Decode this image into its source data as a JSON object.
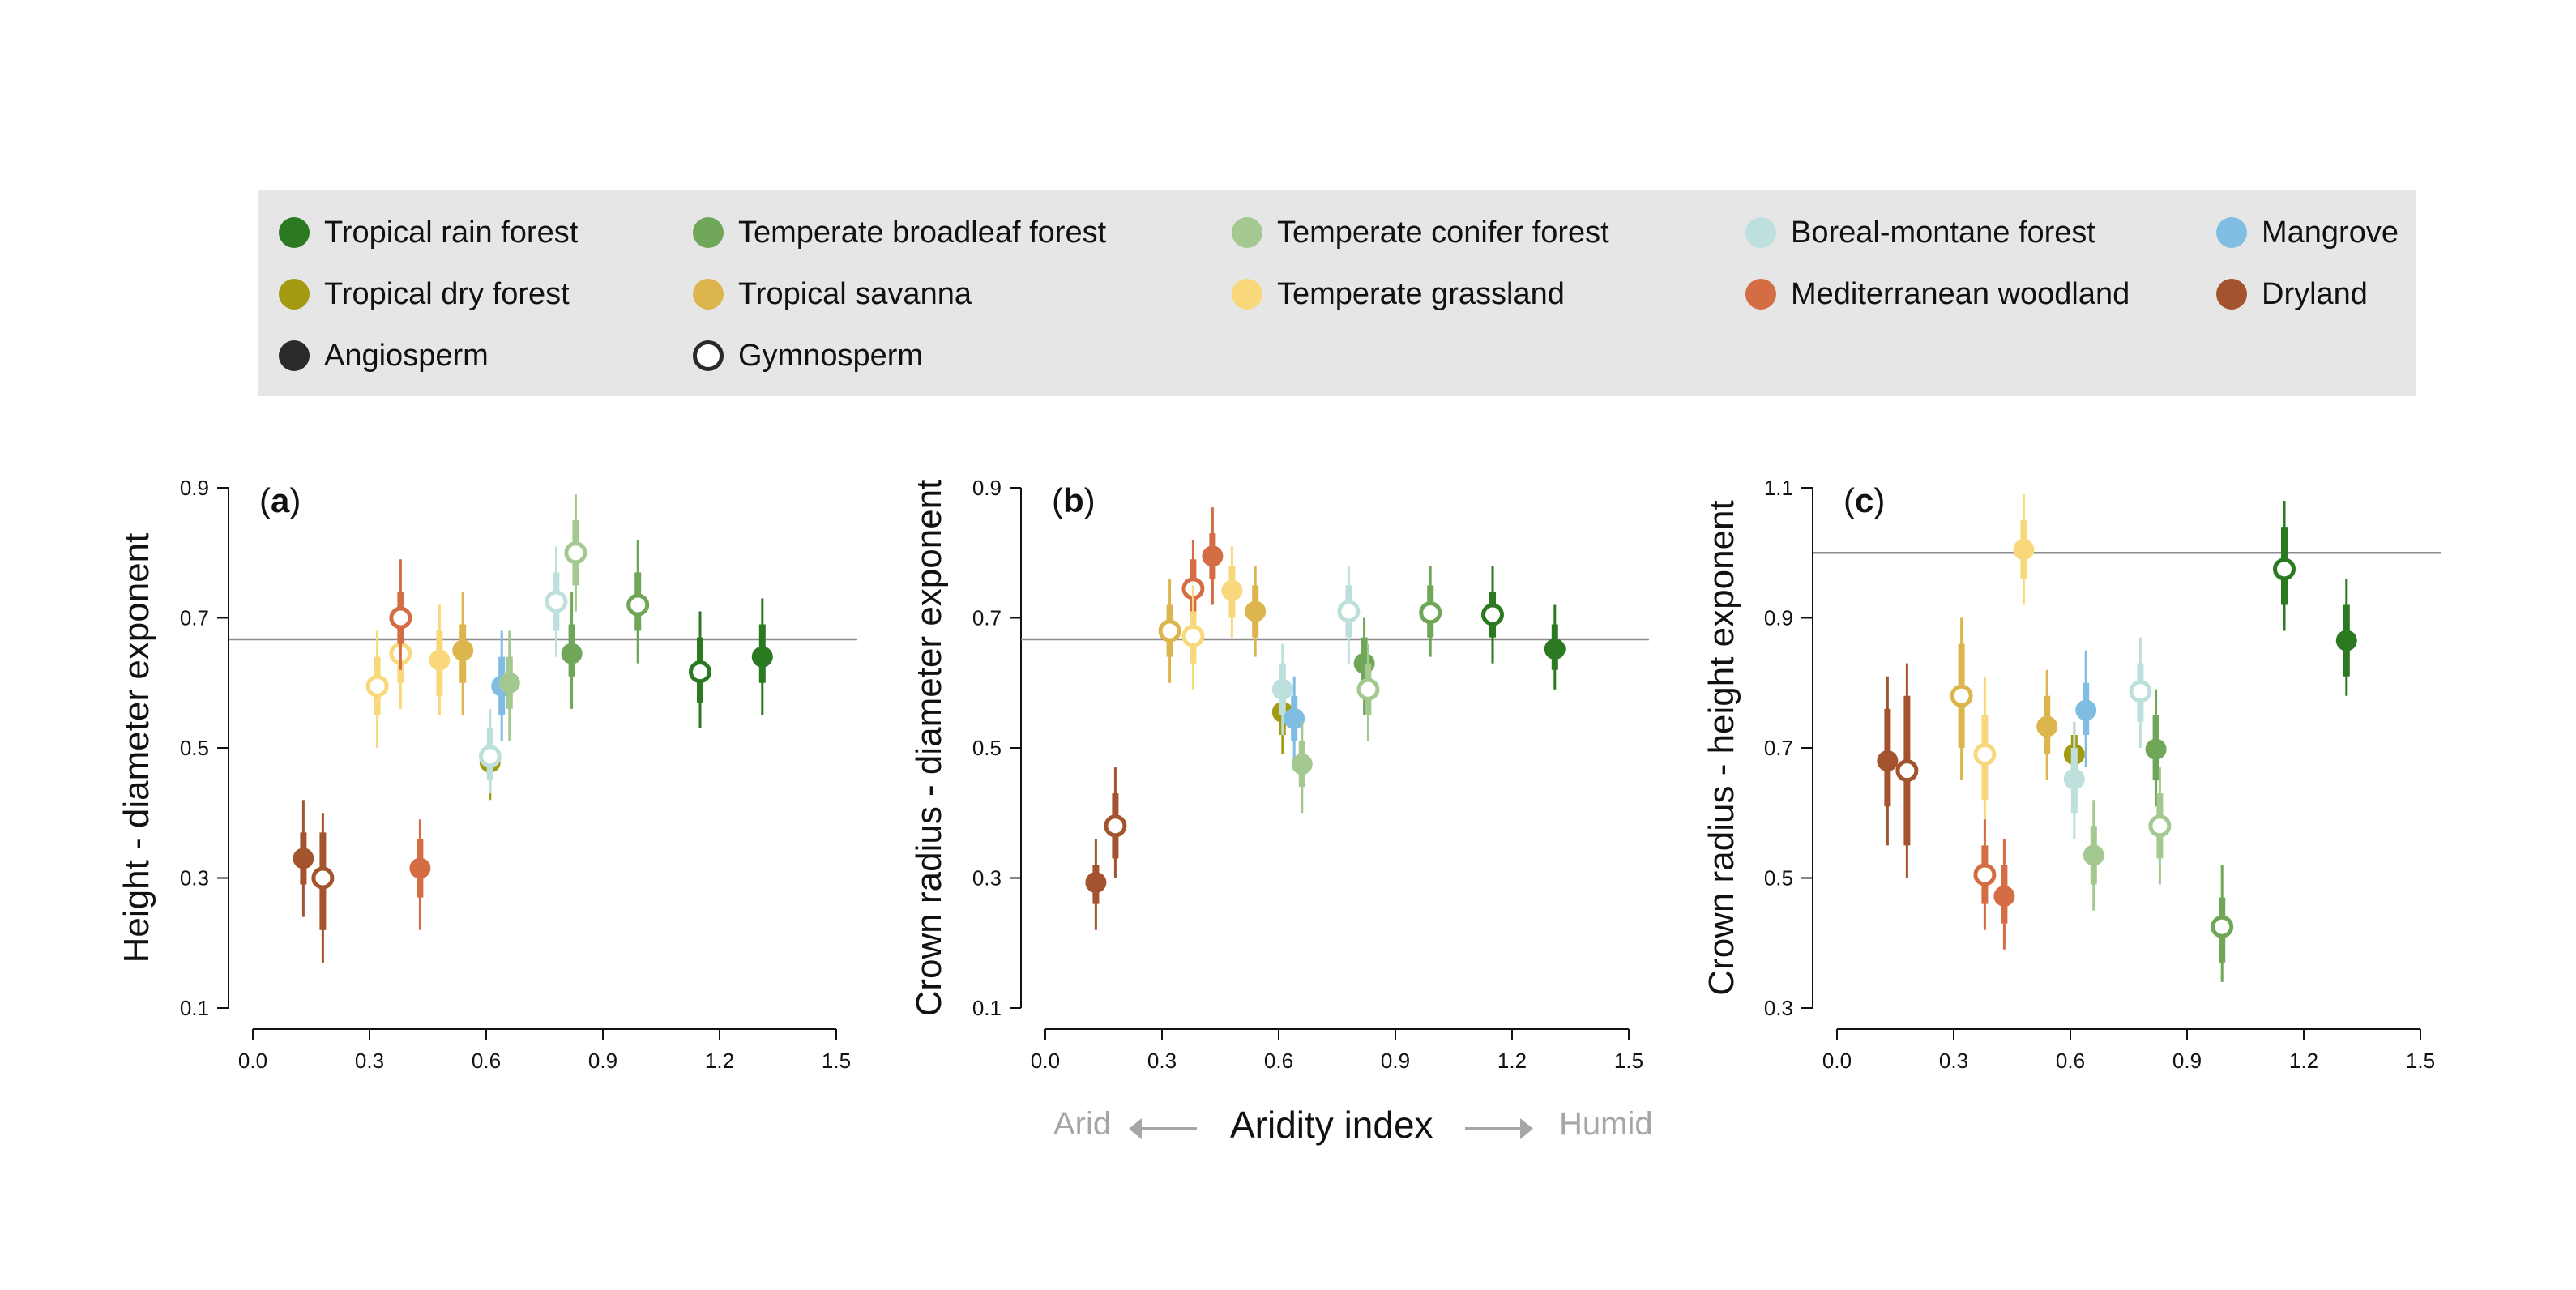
{
  "colors": {
    "tropical_rain_forest": "#2b7a22",
    "temperate_broadleaf_forest": "#6fa657",
    "temperate_conifer_forest": "#a3c890",
    "boreal_montane_forest": "#bde0dc",
    "mangrove": "#7fbde3",
    "tropical_dry_forest": "#a39a12",
    "tropical_savanna": "#dcb54c",
    "temperate_grassland": "#f8d87a",
    "mediterranean_woodland": "#d46d44",
    "dryland": "#a3532e",
    "angiosperm": "#2a2a2a",
    "gymnosperm": "#ffffff",
    "reference_line": "#8c8c8c"
  },
  "legend": [
    {
      "label": "Tropical rain forest",
      "key": "tropical_rain_forest",
      "style": "filled"
    },
    {
      "label": "Temperate broadleaf forest",
      "key": "temperate_broadleaf_forest",
      "style": "filled"
    },
    {
      "label": "Temperate conifer forest",
      "key": "temperate_conifer_forest",
      "style": "filled"
    },
    {
      "label": "Boreal-montane forest",
      "key": "boreal_montane_forest",
      "style": "filled"
    },
    {
      "label": "Mangrove",
      "key": "mangrove",
      "style": "filled"
    },
    {
      "label": "Tropical dry forest",
      "key": "tropical_dry_forest",
      "style": "filled"
    },
    {
      "label": "Tropical savanna",
      "key": "tropical_savanna",
      "style": "filled"
    },
    {
      "label": "Temperate grassland",
      "key": "temperate_grassland",
      "style": "filled"
    },
    {
      "label": "Mediterranean woodland",
      "key": "mediterranean_woodland",
      "style": "filled"
    },
    {
      "label": "Dryland",
      "key": "dryland",
      "style": "filled"
    },
    {
      "label": "Angiosperm",
      "key": "angiosperm",
      "style": "filled"
    },
    {
      "label": "Gymnosperm",
      "key": "angiosperm",
      "style": "open"
    }
  ],
  "x_axis": {
    "label": "Aridity index",
    "left_note": "Arid",
    "right_note": "Humid",
    "ticks": [
      "0.0",
      "0.3",
      "0.6",
      "0.9",
      "1.2",
      "1.5"
    ],
    "range": [
      0,
      1.5
    ]
  },
  "chart_data": [
    {
      "type": "scatter",
      "tag_letter": "a",
      "ylabel": "Height - diameter exponent",
      "ylim": [
        0.1,
        0.9
      ],
      "yticks": [
        "0.1",
        "0.3",
        "0.5",
        "0.7",
        "0.9"
      ],
      "reference_line": 0.667,
      "points": [
        {
          "x": 0.13,
          "y": 0.33,
          "lo50": 0.29,
          "hi50": 0.37,
          "lo95": 0.24,
          "hi95": 0.42,
          "biome": "dryland",
          "group": "angiosperm"
        },
        {
          "x": 0.18,
          "y": 0.3,
          "lo50": 0.22,
          "hi50": 0.37,
          "lo95": 0.17,
          "hi95": 0.4,
          "biome": "dryland",
          "group": "gymnosperm"
        },
        {
          "x": 0.32,
          "y": 0.595,
          "lo50": 0.55,
          "hi50": 0.64,
          "lo95": 0.5,
          "hi95": 0.68,
          "biome": "temperate_grassland",
          "group": "gymnosperm"
        },
        {
          "x": 0.38,
          "y": 0.645,
          "lo50": 0.6,
          "hi50": 0.69,
          "lo95": 0.56,
          "hi95": 0.73,
          "biome": "temperate_grassland",
          "group": "gymnosperm"
        },
        {
          "x": 0.38,
          "y": 0.7,
          "lo50": 0.66,
          "hi50": 0.74,
          "lo95": 0.62,
          "hi95": 0.79,
          "biome": "mediterranean_woodland",
          "group": "gymnosperm"
        },
        {
          "x": 0.43,
          "y": 0.315,
          "lo50": 0.27,
          "hi50": 0.36,
          "lo95": 0.22,
          "hi95": 0.39,
          "biome": "mediterranean_woodland",
          "group": "angiosperm"
        },
        {
          "x": 0.48,
          "y": 0.635,
          "lo50": 0.58,
          "hi50": 0.68,
          "lo95": 0.55,
          "hi95": 0.72,
          "biome": "temperate_grassland",
          "group": "angiosperm"
        },
        {
          "x": 0.54,
          "y": 0.65,
          "lo50": 0.6,
          "hi50": 0.69,
          "lo95": 0.55,
          "hi95": 0.74,
          "biome": "tropical_savanna",
          "group": "angiosperm"
        },
        {
          "x": 0.61,
          "y": 0.478,
          "lo50": 0.46,
          "hi50": 0.49,
          "lo95": 0.42,
          "hi95": 0.51,
          "biome": "tropical_dry_forest",
          "group": "angiosperm"
        },
        {
          "x": 0.61,
          "y": 0.487,
          "lo50": 0.45,
          "hi50": 0.53,
          "lo95": 0.43,
          "hi95": 0.56,
          "biome": "boreal_montane_forest",
          "group": "gymnosperm"
        },
        {
          "x": 0.64,
          "y": 0.595,
          "lo50": 0.55,
          "hi50": 0.64,
          "lo95": 0.51,
          "hi95": 0.68,
          "biome": "mangrove",
          "group": "angiosperm"
        },
        {
          "x": 0.66,
          "y": 0.6,
          "lo50": 0.56,
          "hi50": 0.64,
          "lo95": 0.51,
          "hi95": 0.68,
          "biome": "temperate_conifer_forest",
          "group": "angiosperm"
        },
        {
          "x": 0.78,
          "y": 0.725,
          "lo50": 0.68,
          "hi50": 0.77,
          "lo95": 0.64,
          "hi95": 0.81,
          "biome": "boreal_montane_forest",
          "group": "gymnosperm"
        },
        {
          "x": 0.82,
          "y": 0.645,
          "lo50": 0.61,
          "hi50": 0.69,
          "lo95": 0.56,
          "hi95": 0.74,
          "biome": "temperate_broadleaf_forest",
          "group": "angiosperm"
        },
        {
          "x": 0.83,
          "y": 0.8,
          "lo50": 0.75,
          "hi50": 0.85,
          "lo95": 0.71,
          "hi95": 0.89,
          "biome": "temperate_conifer_forest",
          "group": "gymnosperm"
        },
        {
          "x": 0.99,
          "y": 0.72,
          "lo50": 0.68,
          "hi50": 0.77,
          "lo95": 0.63,
          "hi95": 0.82,
          "biome": "temperate_broadleaf_forest",
          "group": "gymnosperm"
        },
        {
          "x": 1.15,
          "y": 0.617,
          "lo50": 0.57,
          "hi50": 0.67,
          "lo95": 0.53,
          "hi95": 0.71,
          "biome": "tropical_rain_forest",
          "group": "gymnosperm"
        },
        {
          "x": 1.31,
          "y": 0.64,
          "lo50": 0.6,
          "hi50": 0.69,
          "lo95": 0.55,
          "hi95": 0.73,
          "biome": "tropical_rain_forest",
          "group": "angiosperm"
        }
      ]
    },
    {
      "type": "scatter",
      "tag_letter": "b",
      "ylabel": "Crown radius - diameter exponent",
      "ylim": [
        0.1,
        0.9
      ],
      "yticks": [
        "0.1",
        "0.3",
        "0.5",
        "0.7",
        "0.9"
      ],
      "reference_line": 0.667,
      "points": [
        {
          "x": 0.13,
          "y": 0.293,
          "lo50": 0.26,
          "hi50": 0.32,
          "lo95": 0.22,
          "hi95": 0.36,
          "biome": "dryland",
          "group": "angiosperm"
        },
        {
          "x": 0.18,
          "y": 0.38,
          "lo50": 0.33,
          "hi50": 0.43,
          "lo95": 0.3,
          "hi95": 0.47,
          "biome": "dryland",
          "group": "gymnosperm"
        },
        {
          "x": 0.32,
          "y": 0.68,
          "lo50": 0.64,
          "hi50": 0.72,
          "lo95": 0.6,
          "hi95": 0.76,
          "biome": "tropical_savanna",
          "group": "gymnosperm"
        },
        {
          "x": 0.38,
          "y": 0.745,
          "lo50": 0.7,
          "hi50": 0.79,
          "lo95": 0.66,
          "hi95": 0.82,
          "biome": "mediterranean_woodland",
          "group": "gymnosperm"
        },
        {
          "x": 0.38,
          "y": 0.672,
          "lo50": 0.63,
          "hi50": 0.71,
          "lo95": 0.59,
          "hi95": 0.75,
          "biome": "temperate_grassland",
          "group": "gymnosperm"
        },
        {
          "x": 0.43,
          "y": 0.795,
          "lo50": 0.76,
          "hi50": 0.83,
          "lo95": 0.72,
          "hi95": 0.87,
          "biome": "mediterranean_woodland",
          "group": "angiosperm"
        },
        {
          "x": 0.48,
          "y": 0.742,
          "lo50": 0.7,
          "hi50": 0.78,
          "lo95": 0.67,
          "hi95": 0.81,
          "biome": "temperate_grassland",
          "group": "angiosperm"
        },
        {
          "x": 0.54,
          "y": 0.71,
          "lo50": 0.67,
          "hi50": 0.75,
          "lo95": 0.64,
          "hi95": 0.78,
          "biome": "tropical_savanna",
          "group": "angiosperm"
        },
        {
          "x": 0.61,
          "y": 0.555,
          "lo50": 0.52,
          "hi50": 0.59,
          "lo95": 0.49,
          "hi95": 0.62,
          "biome": "tropical_dry_forest",
          "group": "angiosperm"
        },
        {
          "x": 0.61,
          "y": 0.59,
          "lo50": 0.55,
          "hi50": 0.63,
          "lo95": 0.52,
          "hi95": 0.66,
          "biome": "boreal_montane_forest",
          "group": "angiosperm"
        },
        {
          "x": 0.64,
          "y": 0.545,
          "lo50": 0.51,
          "hi50": 0.58,
          "lo95": 0.48,
          "hi95": 0.61,
          "biome": "mangrove",
          "group": "angiosperm"
        },
        {
          "x": 0.66,
          "y": 0.475,
          "lo50": 0.44,
          "hi50": 0.51,
          "lo95": 0.4,
          "hi95": 0.54,
          "biome": "temperate_conifer_forest",
          "group": "angiosperm"
        },
        {
          "x": 0.78,
          "y": 0.71,
          "lo50": 0.67,
          "hi50": 0.75,
          "lo95": 0.63,
          "hi95": 0.78,
          "biome": "boreal_montane_forest",
          "group": "gymnosperm"
        },
        {
          "x": 0.82,
          "y": 0.63,
          "lo50": 0.59,
          "hi50": 0.67,
          "lo95": 0.55,
          "hi95": 0.7,
          "biome": "temperate_broadleaf_forest",
          "group": "angiosperm"
        },
        {
          "x": 0.83,
          "y": 0.59,
          "lo50": 0.55,
          "hi50": 0.63,
          "lo95": 0.51,
          "hi95": 0.66,
          "biome": "temperate_conifer_forest",
          "group": "gymnosperm"
        },
        {
          "x": 0.99,
          "y": 0.708,
          "lo50": 0.67,
          "hi50": 0.75,
          "lo95": 0.64,
          "hi95": 0.78,
          "biome": "temperate_broadleaf_forest",
          "group": "gymnosperm"
        },
        {
          "x": 1.15,
          "y": 0.705,
          "lo50": 0.67,
          "hi50": 0.74,
          "lo95": 0.63,
          "hi95": 0.78,
          "biome": "tropical_rain_forest",
          "group": "gymnosperm"
        },
        {
          "x": 1.31,
          "y": 0.652,
          "lo50": 0.62,
          "hi50": 0.69,
          "lo95": 0.59,
          "hi95": 0.72,
          "biome": "tropical_rain_forest",
          "group": "angiosperm"
        }
      ]
    },
    {
      "type": "scatter",
      "tag_letter": "c",
      "ylabel": "Crown radius - height exponent",
      "ylim": [
        0.3,
        1.1
      ],
      "yticks": [
        "0.3",
        "0.5",
        "0.7",
        "0.9",
        "1.1"
      ],
      "reference_line": 1.0,
      "points": [
        {
          "x": 0.13,
          "y": 0.68,
          "lo50": 0.61,
          "hi50": 0.76,
          "lo95": 0.55,
          "hi95": 0.81,
          "biome": "dryland",
          "group": "angiosperm"
        },
        {
          "x": 0.18,
          "y": 0.665,
          "lo50": 0.55,
          "hi50": 0.78,
          "lo95": 0.5,
          "hi95": 0.83,
          "biome": "dryland",
          "group": "gymnosperm"
        },
        {
          "x": 0.32,
          "y": 0.78,
          "lo50": 0.7,
          "hi50": 0.86,
          "lo95": 0.65,
          "hi95": 0.9,
          "biome": "tropical_savanna",
          "group": "gymnosperm"
        },
        {
          "x": 0.38,
          "y": 0.69,
          "lo50": 0.62,
          "hi50": 0.75,
          "lo95": 0.57,
          "hi95": 0.81,
          "biome": "temperate_grassland",
          "group": "gymnosperm"
        },
        {
          "x": 0.38,
          "y": 0.505,
          "lo50": 0.46,
          "hi50": 0.55,
          "lo95": 0.42,
          "hi95": 0.59,
          "biome": "mediterranean_woodland",
          "group": "gymnosperm"
        },
        {
          "x": 0.43,
          "y": 0.472,
          "lo50": 0.43,
          "hi50": 0.52,
          "lo95": 0.39,
          "hi95": 0.56,
          "biome": "mediterranean_woodland",
          "group": "angiosperm"
        },
        {
          "x": 0.48,
          "y": 1.005,
          "lo50": 0.96,
          "hi50": 1.05,
          "lo95": 0.92,
          "hi95": 1.09,
          "biome": "temperate_grassland",
          "group": "angiosperm"
        },
        {
          "x": 0.54,
          "y": 0.733,
          "lo50": 0.69,
          "hi50": 0.78,
          "lo95": 0.65,
          "hi95": 0.82,
          "biome": "tropical_savanna",
          "group": "angiosperm"
        },
        {
          "x": 0.61,
          "y": 0.69,
          "lo50": 0.66,
          "hi50": 0.72,
          "lo95": 0.63,
          "hi95": 0.74,
          "biome": "tropical_dry_forest",
          "group": "angiosperm"
        },
        {
          "x": 0.61,
          "y": 0.652,
          "lo50": 0.6,
          "hi50": 0.7,
          "lo95": 0.56,
          "hi95": 0.74,
          "biome": "boreal_montane_forest",
          "group": "angiosperm"
        },
        {
          "x": 0.64,
          "y": 0.758,
          "lo50": 0.72,
          "hi50": 0.8,
          "lo95": 0.67,
          "hi95": 0.85,
          "biome": "mangrove",
          "group": "angiosperm"
        },
        {
          "x": 0.66,
          "y": 0.535,
          "lo50": 0.49,
          "hi50": 0.58,
          "lo95": 0.45,
          "hi95": 0.62,
          "biome": "temperate_conifer_forest",
          "group": "angiosperm"
        },
        {
          "x": 0.78,
          "y": 0.787,
          "lo50": 0.74,
          "hi50": 0.83,
          "lo95": 0.7,
          "hi95": 0.87,
          "biome": "boreal_montane_forest",
          "group": "gymnosperm"
        },
        {
          "x": 0.82,
          "y": 0.698,
          "lo50": 0.65,
          "hi50": 0.75,
          "lo95": 0.61,
          "hi95": 0.79,
          "biome": "temperate_broadleaf_forest",
          "group": "angiosperm"
        },
        {
          "x": 0.83,
          "y": 0.58,
          "lo50": 0.53,
          "hi50": 0.63,
          "lo95": 0.49,
          "hi95": 0.67,
          "biome": "temperate_conifer_forest",
          "group": "gymnosperm"
        },
        {
          "x": 0.99,
          "y": 0.425,
          "lo50": 0.37,
          "hi50": 0.47,
          "lo95": 0.34,
          "hi95": 0.52,
          "biome": "temperate_broadleaf_forest",
          "group": "gymnosperm"
        },
        {
          "x": 1.15,
          "y": 0.975,
          "lo50": 0.92,
          "hi50": 1.04,
          "lo95": 0.88,
          "hi95": 1.08,
          "biome": "tropical_rain_forest",
          "group": "gymnosperm"
        },
        {
          "x": 1.31,
          "y": 0.865,
          "lo50": 0.81,
          "hi50": 0.92,
          "lo95": 0.78,
          "hi95": 0.96,
          "biome": "tropical_rain_forest",
          "group": "angiosperm"
        }
      ]
    }
  ]
}
